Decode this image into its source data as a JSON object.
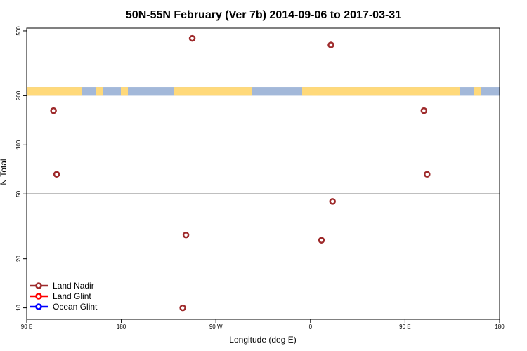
{
  "chart_data": {
    "type": "scatter",
    "title": "50N-55N February (Ver 7b)   2014-09-06 to 2017-03-31",
    "xlabel": "Longitude (deg E)",
    "ylabel": "N Total",
    "y_scale": "log",
    "ylim": [
      8.5,
      520
    ],
    "xlim": [
      -90,
      180
    ],
    "x_ticks": [
      {
        "value": -90,
        "label": "90 E"
      },
      {
        "value": -30,
        "label": "180"
      },
      {
        "value": 30,
        "label": "90 W"
      },
      {
        "value": 90,
        "label": "0"
      },
      {
        "value": 150,
        "label": "90 E"
      },
      {
        "value": 210,
        "label": "180"
      }
    ],
    "y_ticks": [
      {
        "value": 10,
        "label": "10"
      },
      {
        "value": 20,
        "label": "20"
      },
      {
        "value": 50,
        "label": "50"
      },
      {
        "value": 100,
        "label": "100"
      },
      {
        "value": 200,
        "label": "200"
      },
      {
        "value": 500,
        "label": "500"
      }
    ],
    "reference_line": 50,
    "map_strip": {
      "y_low": 200,
      "y_high": 226,
      "land_color": "#FFD97A",
      "ocean_color": "#A3B8D9"
    },
    "legend": {
      "position": "bottom-left"
    },
    "series": [
      {
        "name": "Land Nadir",
        "color": "#9E2A2B",
        "points": [
          {
            "x": -73,
            "y": 162
          },
          {
            "x": -71,
            "y": 66
          },
          {
            "x": 9,
            "y": 10
          },
          {
            "x": 11,
            "y": 28
          },
          {
            "x": 15,
            "y": 450
          },
          {
            "x": 97,
            "y": 26
          },
          {
            "x": 103,
            "y": 410
          },
          {
            "x": 104,
            "y": 45
          },
          {
            "x": 162,
            "y": 162
          },
          {
            "x": 164,
            "y": 66
          }
        ]
      },
      {
        "name": "Land Glint",
        "color": "#FF0000",
        "points": []
      },
      {
        "name": "Ocean Glint",
        "color": "#0000FF",
        "points": []
      }
    ]
  }
}
